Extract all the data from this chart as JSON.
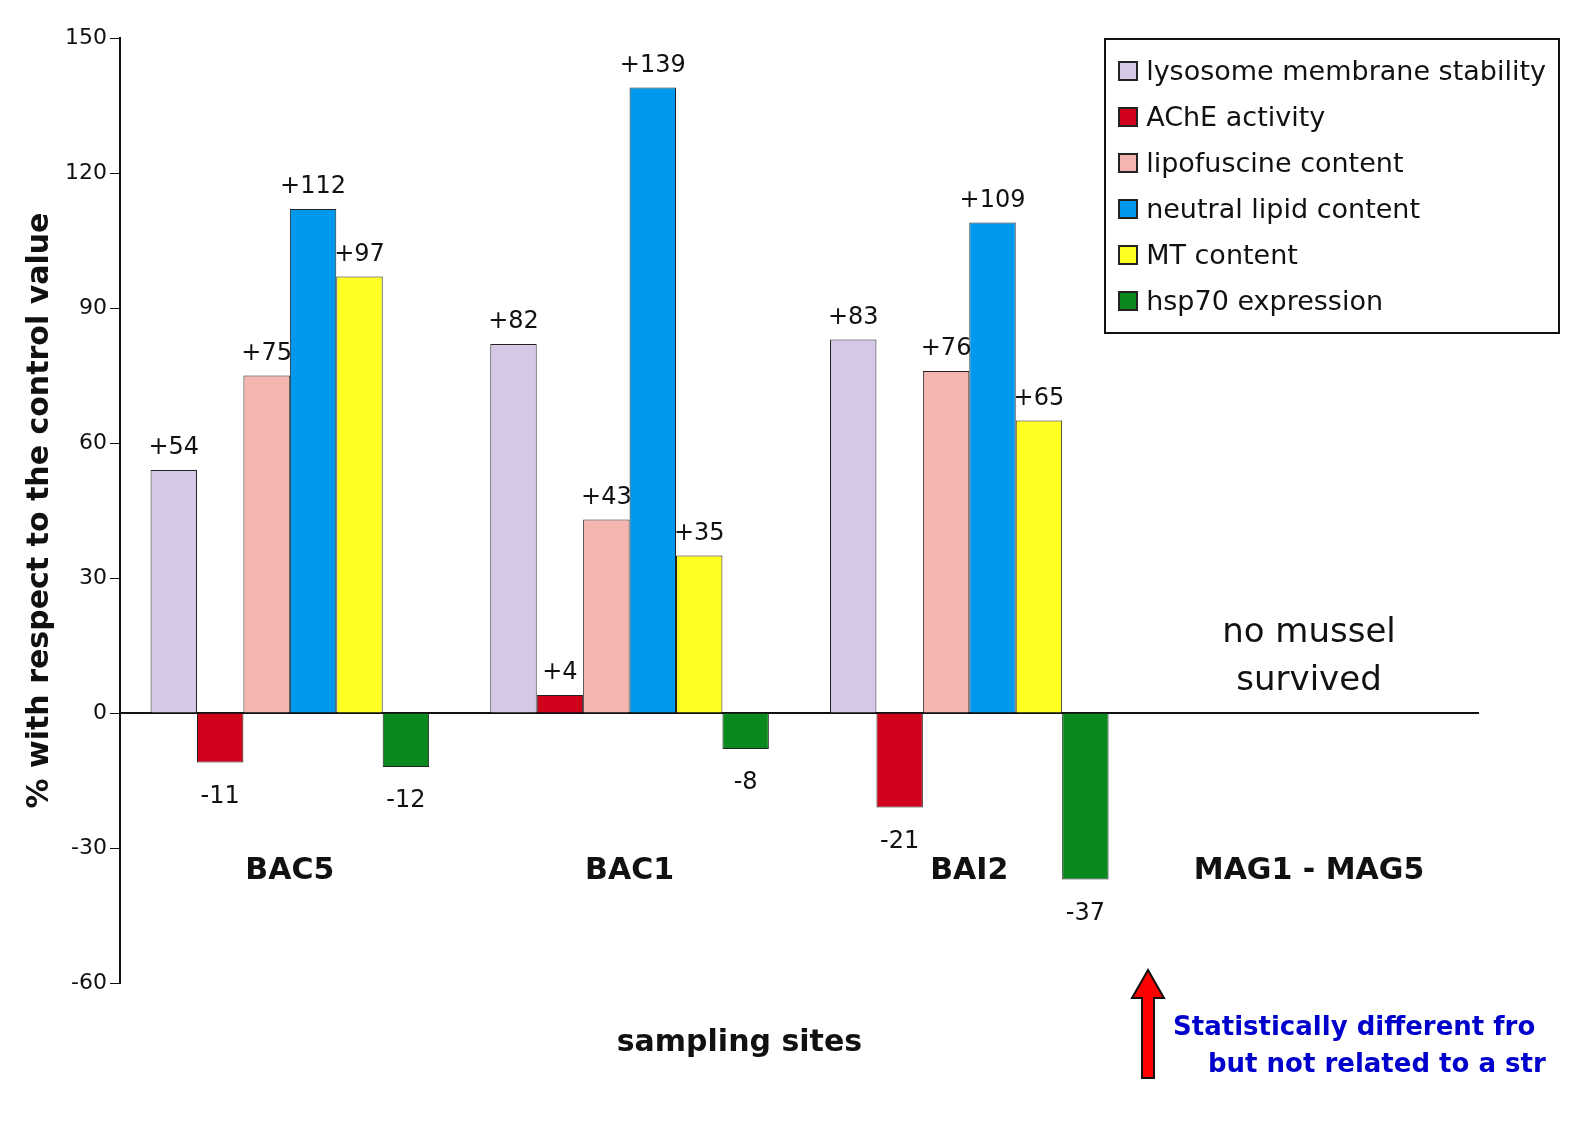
{
  "chart_data": {
    "type": "bar",
    "ylabel": "% with respect to the control value",
    "xlabel": "sampling sites",
    "categories": [
      "BAC5",
      "BAC1",
      "BAI2",
      "MAG1 - MAG5"
    ],
    "series": [
      {
        "name": "lysosome membrane stability",
        "color": "#d4c8e6",
        "values": [
          54,
          82,
          83,
          null
        ],
        "value_labels": [
          "+54",
          "+82",
          "+83",
          null
        ]
      },
      {
        "name": "AChE activity",
        "color": "#d0021b",
        "values": [
          -11,
          4,
          -21,
          null
        ],
        "value_labels": [
          "-11",
          "+4",
          "-21",
          null
        ]
      },
      {
        "name": "lipofuscine content",
        "color": "#f4b4b0",
        "values": [
          75,
          43,
          76,
          null
        ],
        "value_labels": [
          "+75",
          "+43",
          "+76",
          null
        ]
      },
      {
        "name": "neutral lipid content",
        "color": "#0099ee",
        "values": [
          112,
          139,
          109,
          null
        ],
        "value_labels": [
          "+112",
          "+139",
          "+109",
          null
        ]
      },
      {
        "name": "MT content",
        "color": "#ffff22",
        "values": [
          97,
          35,
          65,
          null
        ],
        "value_labels": [
          "+97",
          "+35",
          "+65",
          null
        ]
      },
      {
        "name": "hsp70 expression",
        "color": "#0a8a1e",
        "values": [
          -12,
          -8,
          -37,
          null
        ],
        "value_labels": [
          "-12",
          "-8",
          "-37",
          null
        ]
      }
    ],
    "ylim": [
      -60,
      150
    ],
    "yticks": [
      -60,
      -30,
      0,
      30,
      60,
      90,
      120,
      150
    ],
    "legend": "top right",
    "annotations": [
      "no mussel survived",
      "Statistically different fro\nbut not related to a str"
    ]
  }
}
